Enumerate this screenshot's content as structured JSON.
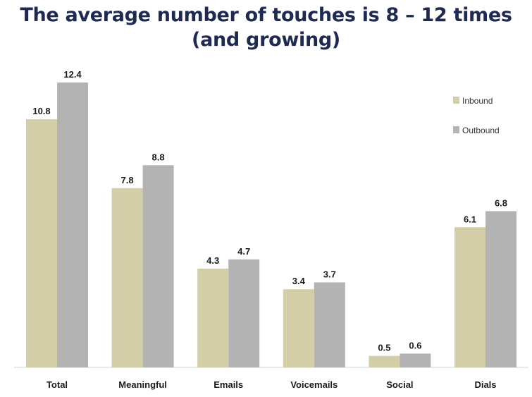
{
  "title_line1": "The average number of touches is 8 – 12 times",
  "title_line2": "(and growing)",
  "chart_data": {
    "type": "bar",
    "categories": [
      "Total",
      "Meaningful",
      "Emails",
      "Voicemails",
      "Social",
      "Dials"
    ],
    "series": [
      {
        "name": "Inbound",
        "values": [
          10.8,
          7.8,
          4.3,
          3.4,
          0.5,
          6.1
        ],
        "color": "#d3cda8"
      },
      {
        "name": "Outbound",
        "values": [
          12.4,
          8.8,
          4.7,
          3.7,
          0.6,
          6.8
        ],
        "color": "#b3b3b3"
      }
    ],
    "ylim": [
      0,
      14
    ],
    "grid": false,
    "legend": "top-right",
    "data_labels": true
  }
}
